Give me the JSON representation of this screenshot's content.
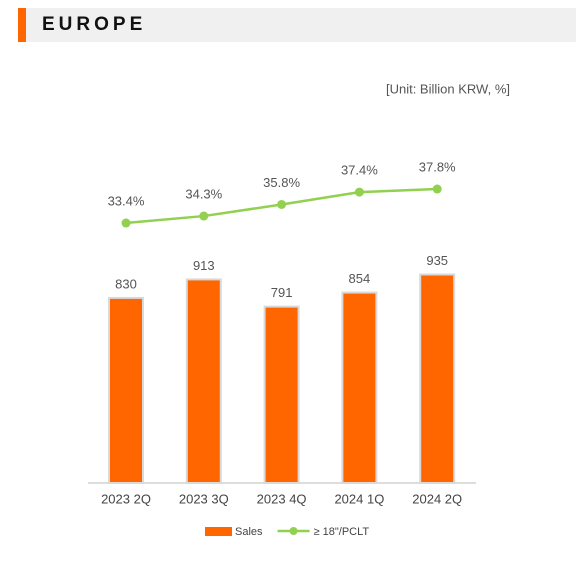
{
  "header": {
    "title": "EUROPE"
  },
  "chart_data": {
    "type": "bar",
    "unit_label": "[Unit: Billion KRW, %]",
    "categories": [
      "2023 2Q",
      "2023 3Q",
      "2023 4Q",
      "2024 1Q",
      "2024 2Q"
    ],
    "series": [
      {
        "name": "Sales",
        "type": "bar",
        "color": "#ff6600",
        "values": [
          830,
          913,
          791,
          854,
          935
        ]
      },
      {
        "name": "≥ 18\"/PCLT",
        "type": "line",
        "color": "#92d050",
        "values": [
          33.4,
          34.3,
          35.8,
          37.4,
          37.8
        ],
        "value_labels": [
          "33.4%",
          "34.3%",
          "35.8%",
          "37.4%",
          "37.8%"
        ]
      }
    ]
  }
}
